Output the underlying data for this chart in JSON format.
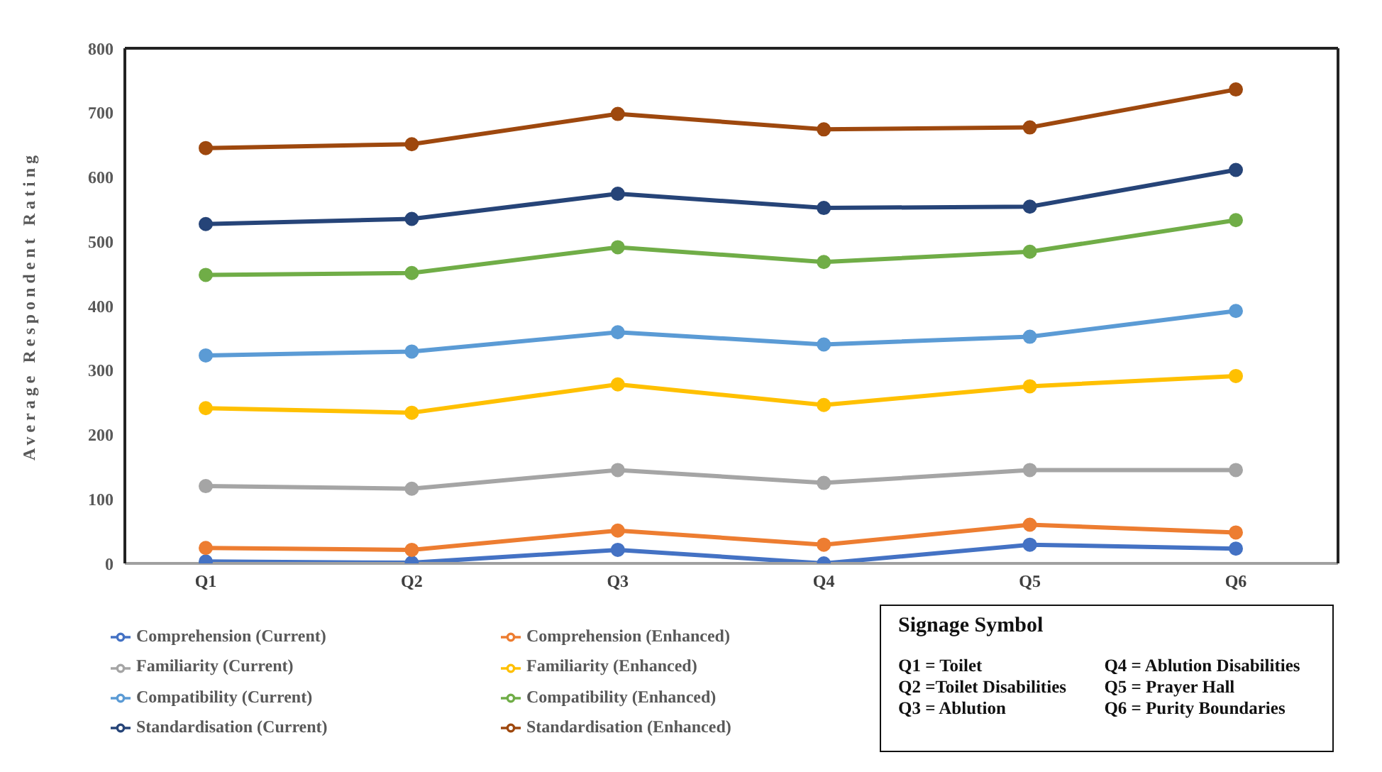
{
  "chart_data": {
    "type": "line",
    "ylabel": "Average Respondent Rating",
    "categories": [
      "Q1",
      "Q2",
      "Q3",
      "Q4",
      "Q5",
      "Q6"
    ],
    "ylim": [
      0,
      800
    ],
    "yticks": [
      0,
      100,
      200,
      300,
      400,
      500,
      600,
      700,
      800
    ],
    "grid": false,
    "legend": "bottom left",
    "marker": "circle",
    "line_style": "solid",
    "series": [
      {
        "name": "Comprehension (Current)",
        "color": "#4472c4",
        "values": [
          3,
          1,
          21,
          0,
          29,
          23
        ]
      },
      {
        "name": "Comprehension (Enhanced)",
        "color": "#ed7d31",
        "values": [
          24,
          21,
          51,
          29,
          60,
          48
        ]
      },
      {
        "name": "Familiarity (Current)",
        "color": "#a5a5a5",
        "values": [
          120,
          116,
          145,
          125,
          145,
          145
        ]
      },
      {
        "name": "Familiarity (Enhanced)",
        "color": "#ffc000",
        "values": [
          241,
          234,
          278,
          246,
          275,
          291
        ]
      },
      {
        "name": "Compatibility (Current)",
        "color": "#5b9bd5",
        "values": [
          323,
          329,
          359,
          340,
          352,
          392
        ]
      },
      {
        "name": "Compatibility (Enhanced)",
        "color": "#70ad47",
        "values": [
          448,
          451,
          491,
          468,
          484,
          533
        ]
      },
      {
        "name": "Standardisation (Current)",
        "color": "#264478",
        "values": [
          527,
          535,
          574,
          552,
          554,
          611
        ]
      },
      {
        "name": "Standardisation (Enhanced)",
        "color": "#9e480e",
        "values": [
          645,
          651,
          698,
          674,
          677,
          736
        ]
      }
    ],
    "annotations": [
      "Signage Symbol",
      "Q1 = Toilet",
      "Q2 =Toilet Disabilities",
      "Q3 = Ablution",
      "Q4 = Ablution Disabilities",
      "Q5 = Prayer Hall",
      "Q6 = Purity Boundaries"
    ]
  }
}
